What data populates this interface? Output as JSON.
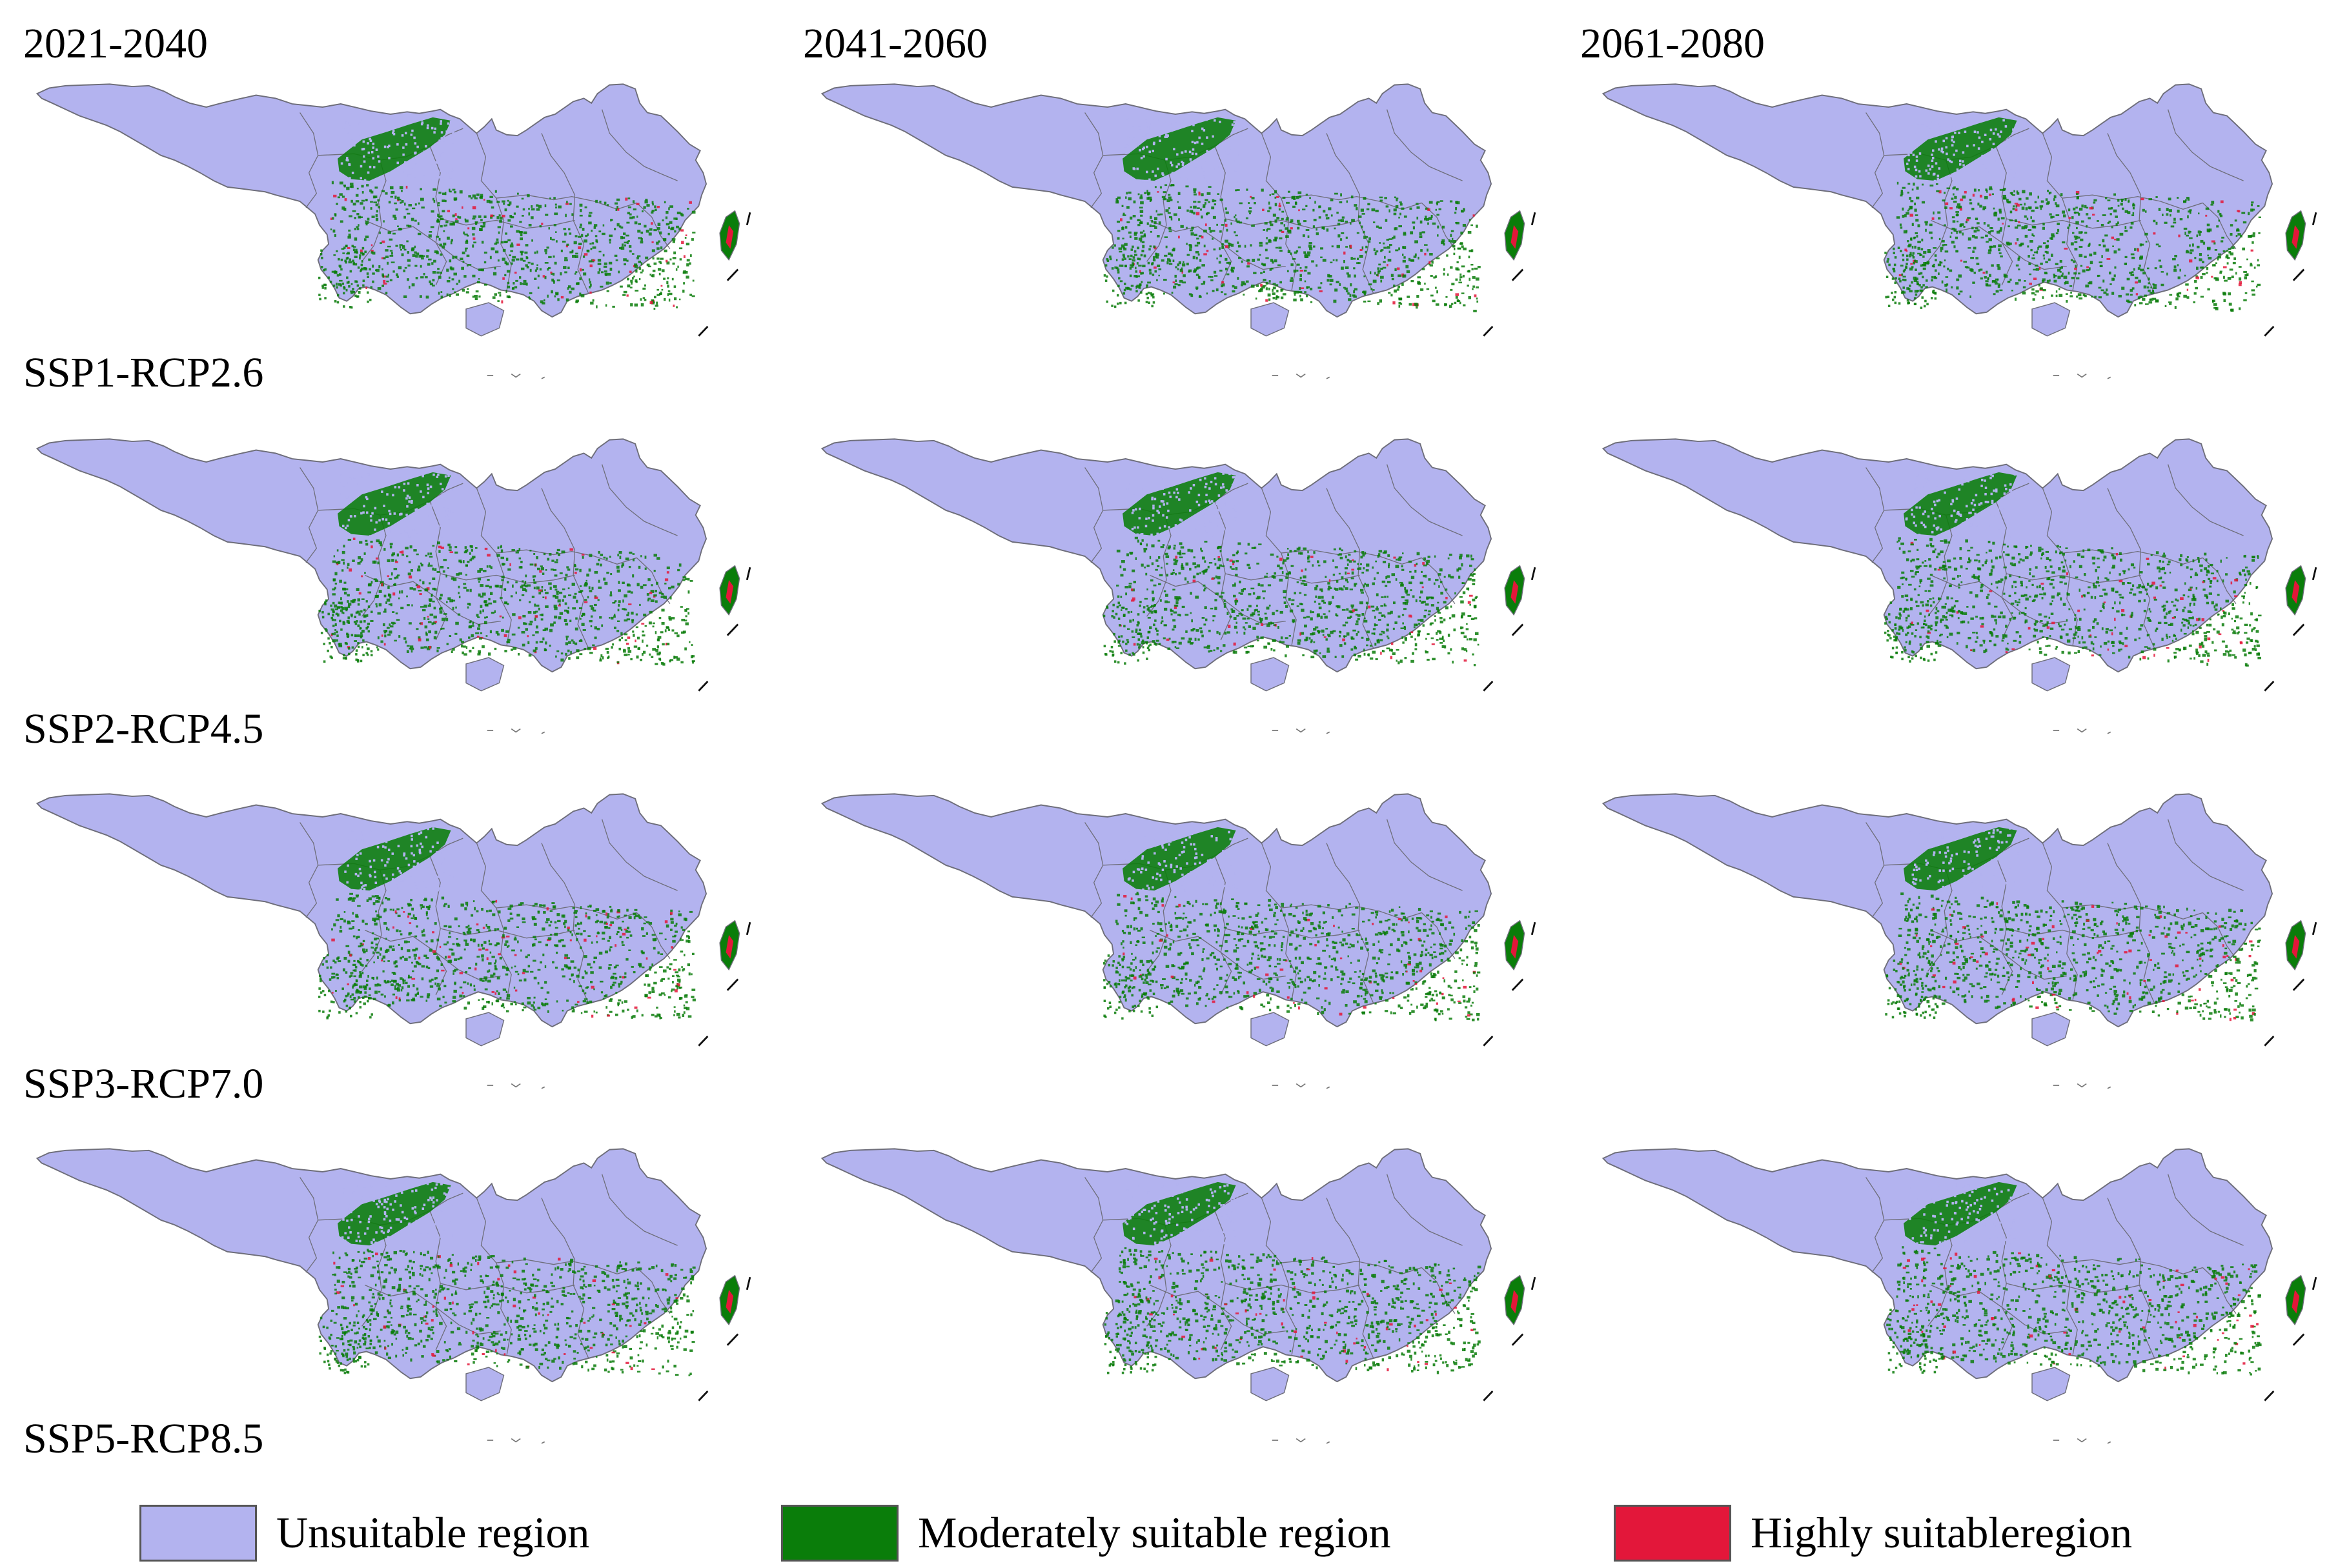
{
  "periods": [
    "2021-2040",
    "2041-2060",
    "2061-2080"
  ],
  "scenarios": [
    "SSP1-RCP2.6",
    "SSP2-RCP4.5",
    "SSP3-RCP7.0",
    "SSP5-RCP8.5"
  ],
  "legend": [
    {
      "label": "Unsuitable region",
      "color": "#b3b3ef"
    },
    {
      "label": "Moderately suitable region",
      "color": "#0a7d0a"
    },
    {
      "label": "Highly suitableregion",
      "color": "#e3173a"
    }
  ],
  "colors": {
    "unsuitable": "#b3b3ef",
    "moderate": "#0a7d0a",
    "high": "#e3173a",
    "boundary": "#6e6e7a"
  }
}
